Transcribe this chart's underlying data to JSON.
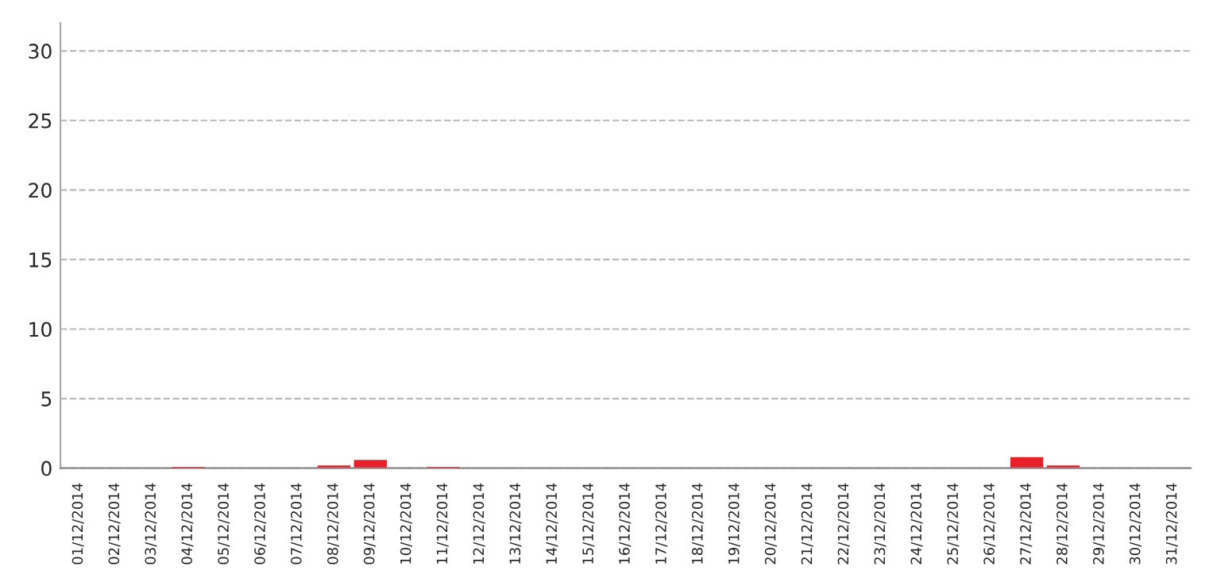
{
  "chart_data": {
    "type": "bar",
    "categories": [
      "01/12/2014",
      "02/12/2014",
      "03/12/2014",
      "04/12/2014",
      "05/12/2014",
      "06/12/2014",
      "07/12/2014",
      "08/12/2014",
      "09/12/2014",
      "10/12/2014",
      "11/12/2014",
      "12/12/2014",
      "13/12/2014",
      "14/12/2014",
      "15/12/2014",
      "16/12/2014",
      "17/12/2014",
      "18/12/2014",
      "19/12/2014",
      "20/12/2014",
      "21/12/2014",
      "22/12/2014",
      "23/12/2014",
      "24/12/2014",
      "25/12/2014",
      "26/12/2014",
      "27/12/2014",
      "28/12/2014",
      "29/12/2014",
      "30/12/2014",
      "31/12/2014"
    ],
    "values": [
      0,
      0,
      0,
      0.1,
      0,
      0,
      0,
      0.2,
      0.6,
      0,
      0.1,
      0,
      0,
      0,
      0,
      0,
      0,
      0,
      0,
      0,
      0,
      0,
      0,
      0,
      0,
      0,
      0.8,
      0.2,
      0,
      0,
      0
    ],
    "color": "#e8202a",
    "ylim": [
      0,
      32
    ],
    "yticks": [
      0,
      5,
      10,
      15,
      20,
      25,
      30
    ],
    "grid": "y"
  }
}
